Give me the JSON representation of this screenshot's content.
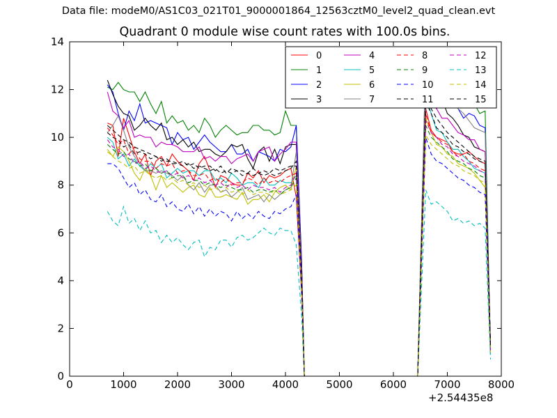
{
  "header": {
    "suptitle": "Data file: modeM0/AS1C03_021T01_9000001864_12563cztM0_level2_quad_clean.evt"
  },
  "chart_data": {
    "type": "line",
    "title": "Quadrant 0 module wise count rates with 100.0s bins.",
    "xlabel": "",
    "ylabel": "",
    "x_offset_label": "+2.54435e8",
    "xlim": [
      0,
      8000
    ],
    "ylim": [
      0,
      14
    ],
    "xticks": [
      0,
      1000,
      2000,
      3000,
      4000,
      5000,
      6000,
      7000,
      8000
    ],
    "yticks": [
      0,
      2,
      4,
      6,
      8,
      10,
      12,
      14
    ],
    "legend_position": "top-right",
    "legend_columns": 4,
    "segments": [
      {
        "x_start": 700,
        "x_end": 4100,
        "step": 100
      },
      {
        "x_start": 6600,
        "x_end": 7700,
        "step": 100
      }
    ],
    "zero_range": [
      4350,
      6450
    ],
    "series": [
      {
        "name": "0",
        "color": "#ff0000",
        "style": "solid",
        "values": [
          10.6,
          10.5,
          9.2,
          10.8,
          10.1,
          9.4,
          8.9,
          9.3,
          8.4,
          9.0,
          9.2,
          8.8,
          9.3,
          9.0,
          8.8,
          8.6,
          8.2,
          8.9,
          9.2,
          8.6,
          7.9,
          8.4,
          8.3,
          8.1,
          8.0,
          8.0,
          8.5,
          8.3,
          8.6,
          8.1,
          8.4,
          8.3,
          8.4,
          8.6,
          8.7
        ],
        "values2": [
          11.2,
          10.3,
          10.0,
          9.9,
          9.8,
          9.4,
          9.3,
          9.3,
          9.4,
          9.2,
          9.0,
          8.9
        ],
        "end_values": [
          7.5,
          1.4
        ]
      },
      {
        "name": "1",
        "color": "#008000",
        "style": "solid",
        "values": [
          12.1,
          12.0,
          12.3,
          12.0,
          11.9,
          11.9,
          11.5,
          11.9,
          11.4,
          11.0,
          11.5,
          10.6,
          10.9,
          10.6,
          10.7,
          10.3,
          10.5,
          10.2,
          10.8,
          10.5,
          10.0,
          10.3,
          10.5,
          10.3,
          10.1,
          10.2,
          10.2,
          10.5,
          10.5,
          10.3,
          10.3,
          10.1,
          10.2,
          11.1,
          10.5
        ],
        "values2": [
          13.3,
          12.9,
          12.6,
          12.5,
          12.2,
          11.9,
          12.0,
          11.3,
          11.8,
          11.4,
          11.0,
          11.1
        ],
        "end_values": [
          10.5,
          1.0
        ]
      },
      {
        "name": "2",
        "color": "#0000ff",
        "style": "solid",
        "values": [
          12.2,
          11.9,
          11.0,
          10.3,
          11.1,
          10.7,
          11.4,
          10.6,
          10.7,
          10.6,
          10.5,
          10.4,
          9.7,
          10.2,
          9.9,
          10.0,
          9.5,
          9.8,
          10.1,
          9.8,
          9.6,
          9.4,
          9.4,
          9.7,
          9.3,
          9.3,
          9.5,
          9.0,
          9.4,
          9.3,
          9.2,
          9.0,
          9.5,
          9.4,
          9.6
        ],
        "values2": [
          12.4,
          11.6,
          11.6,
          12.2,
          12.0,
          11.5,
          11.2,
          10.8,
          11.0,
          10.9,
          10.5,
          10.4
        ],
        "end_values": [
          10.5,
          1.1
        ]
      },
      {
        "name": "3",
        "color": "#000000",
        "style": "solid",
        "values": [
          12.4,
          11.8,
          11.3,
          11.0,
          10.9,
          10.3,
          10.5,
          10.8,
          10.5,
          10.3,
          10.6,
          9.9,
          10.0,
          9.7,
          9.9,
          9.6,
          9.8,
          9.4,
          9.5,
          9.5,
          9.3,
          9.2,
          9.4,
          9.7,
          9.6,
          9.7,
          9.1,
          8.7,
          9.4,
          9.6,
          9.0,
          9.5,
          8.9,
          9.6,
          9.7
        ],
        "values2": [
          12.3,
          11.4,
          11.2,
          11.6,
          11.0,
          10.8,
          10.5,
          10.1,
          10.0,
          9.6,
          9.5,
          9.4
        ],
        "end_values": [
          9.7,
          1.3
        ]
      },
      {
        "name": "4",
        "color": "#bf00bf",
        "style": "solid",
        "values": [
          11.9,
          11.1,
          10.9,
          10.4,
          10.7,
          10.0,
          10.1,
          10.0,
          10.0,
          9.6,
          9.8,
          9.7,
          9.7,
          9.6,
          9.4,
          9.4,
          9.4,
          9.6,
          9.1,
          9.2,
          9.0,
          9.2,
          9.2,
          8.9,
          9.1,
          9.2,
          9.3,
          9.0,
          9.4,
          9.5,
          9.6,
          9.0,
          9.3,
          9.5,
          9.8
        ],
        "values2": [
          12.2,
          11.4,
          11.2,
          10.8,
          10.8,
          10.5,
          10.2,
          10.1,
          9.9,
          9.9,
          9.5,
          9.4
        ],
        "end_values": [
          9.8,
          1.1
        ]
      },
      {
        "name": "5",
        "color": "#00bfbf",
        "style": "solid",
        "values": [
          10.0,
          9.8,
          9.1,
          9.3,
          8.8,
          9.1,
          8.8,
          8.6,
          8.9,
          8.7,
          8.9,
          8.3,
          8.5,
          8.7,
          8.5,
          8.6,
          8.6,
          8.4,
          8.6,
          8.6,
          8.2,
          8.3,
          8.1,
          8.5,
          8.3,
          8.0,
          8.1,
          8.1,
          7.9,
          8.3,
          8.0,
          8.0,
          8.2,
          8.1,
          8.1
        ],
        "values2": [
          11.7,
          11.0,
          10.3,
          10.2,
          9.8,
          9.5,
          9.5,
          9.2,
          9.0,
          8.7,
          8.6,
          8.5
        ],
        "end_values": [
          8.4,
          0.9
        ]
      },
      {
        "name": "6",
        "color": "#bfbf00",
        "style": "solid",
        "values": [
          9.5,
          9.2,
          9.6,
          9.4,
          9.0,
          8.5,
          8.2,
          8.7,
          8.4,
          7.8,
          8.4,
          7.9,
          8.1,
          7.9,
          7.7,
          7.9,
          8.0,
          7.6,
          7.5,
          7.9,
          7.5,
          7.5,
          7.6,
          7.5,
          7.4,
          7.7,
          7.2,
          7.4,
          7.4,
          7.6,
          7.3,
          7.7,
          7.9,
          8.0,
          7.8
        ],
        "values2": [
          10.8,
          10.2,
          9.7,
          9.6,
          9.3,
          9.2,
          8.9,
          8.8,
          8.7,
          8.5,
          8.2,
          7.9
        ],
        "end_values": [
          8.8,
          1.0
        ]
      },
      {
        "name": "7",
        "color": "#808080",
        "style": "solid",
        "values": [
          10.2,
          10.5,
          10.9,
          10.3,
          9.6,
          9.2,
          8.9,
          8.6,
          8.6,
          8.5,
          8.6,
          8.5,
          8.4,
          8.2,
          8.4,
          8.0,
          7.8,
          8.1,
          7.7,
          8.0,
          8.0,
          7.7,
          7.8,
          7.5,
          7.7,
          7.9,
          7.4,
          7.5,
          7.6,
          7.3,
          7.6,
          7.4,
          7.6,
          7.8,
          7.9
        ],
        "values2": [
          13.4,
          12.8,
          12.5,
          12.1,
          11.9,
          11.4,
          11.2,
          11.0,
          10.7,
          10.4,
          10.3,
          10.2
        ],
        "end_values": [
          9.4,
          1.0
        ]
      },
      {
        "name": "8",
        "color": "#ff0000",
        "style": "dashed",
        "values": [
          10.4,
          10.1,
          9.7,
          9.9,
          9.3,
          9.6,
          9.1,
          9.0,
          9.0,
          8.7,
          8.9,
          8.8,
          8.9,
          8.5,
          8.6,
          8.6,
          8.4,
          8.4,
          8.5,
          8.2,
          8.3,
          8.1,
          8.3,
          8.0,
          8.1,
          8.1,
          8.3,
          8.2,
          8.0,
          8.3,
          8.1,
          8.2,
          8.1,
          8.3,
          8.4
        ],
        "values2": [
          11.0,
          10.2,
          10.0,
          9.8,
          9.7,
          9.4,
          9.2,
          9.3,
          9.0,
          8.9,
          8.7,
          8.6
        ],
        "end_values": [
          8.5,
          1.2
        ]
      },
      {
        "name": "9",
        "color": "#008000",
        "style": "dashed",
        "values": [
          9.7,
          9.5,
          9.3,
          9.4,
          9.1,
          9.0,
          8.8,
          8.9,
          8.6,
          8.7,
          8.5,
          8.6,
          8.3,
          8.4,
          8.4,
          8.1,
          8.2,
          8.2,
          8.0,
          8.1,
          8.0,
          7.9,
          8.0,
          7.9,
          7.8,
          7.8,
          7.9,
          7.7,
          7.8,
          7.8,
          7.7,
          7.8,
          7.6,
          7.8,
          7.9
        ],
        "values2": [
          10.5,
          10.0,
          9.8,
          9.6,
          9.4,
          9.1,
          9.0,
          8.9,
          8.7,
          8.6,
          8.4,
          8.3
        ],
        "end_values": [
          8.3,
          1.1
        ]
      },
      {
        "name": "10",
        "color": "#0000ff",
        "style": "dashed",
        "values": [
          8.9,
          8.9,
          8.7,
          8.3,
          7.9,
          8.1,
          7.6,
          7.8,
          7.4,
          7.3,
          7.6,
          7.1,
          7.3,
          7.0,
          6.9,
          7.2,
          6.8,
          7.1,
          6.7,
          7.0,
          6.7,
          6.9,
          6.8,
          6.5,
          6.9,
          6.6,
          6.8,
          6.6,
          6.9,
          6.7,
          6.6,
          6.9,
          6.8,
          7.0,
          7.1
        ],
        "values2": [
          10.0,
          9.3,
          9.0,
          8.9,
          8.7,
          8.5,
          8.3,
          8.2,
          8.0,
          7.9,
          7.7,
          7.6
        ],
        "end_values": [
          7.6,
          1.0
        ]
      },
      {
        "name": "11",
        "color": "#000000",
        "style": "dashed",
        "values": [
          10.2,
          10.0,
          9.9,
          9.6,
          9.7,
          9.3,
          9.4,
          9.3,
          9.1,
          9.2,
          9.0,
          9.1,
          8.9,
          8.9,
          9.0,
          8.8,
          8.9,
          8.7,
          8.8,
          8.8,
          8.6,
          8.8,
          8.5,
          8.7,
          8.6,
          8.6,
          8.5,
          8.7,
          8.5,
          8.6,
          8.5,
          8.7,
          8.6,
          8.7,
          8.8
        ],
        "values2": [
          11.5,
          11.0,
          10.4,
          10.2,
          10.0,
          9.7,
          9.6,
          9.4,
          9.3,
          9.1,
          9.0,
          8.9
        ],
        "end_values": [
          8.8,
          1.2
        ]
      },
      {
        "name": "12",
        "color": "#bf00bf",
        "style": "dashed",
        "values": [
          9.9,
          9.6,
          9.5,
          9.2,
          9.3,
          8.9,
          9.0,
          8.7,
          8.8,
          8.6,
          8.5,
          8.6,
          8.4,
          8.5,
          8.3,
          8.4,
          8.2,
          8.3,
          8.1,
          8.2,
          8.0,
          8.1,
          7.9,
          8.1,
          7.9,
          8.0,
          7.8,
          8.0,
          7.9,
          7.9,
          7.8,
          7.9,
          7.7,
          7.9,
          8.0
        ],
        "values2": [
          10.7,
          10.2,
          10.0,
          9.7,
          9.6,
          9.3,
          9.2,
          9.0,
          8.9,
          8.8,
          8.6,
          8.5
        ],
        "end_values": [
          8.5,
          1.1
        ]
      },
      {
        "name": "13",
        "color": "#00bfbf",
        "style": "dashed",
        "values": [
          6.9,
          6.5,
          6.3,
          7.1,
          6.4,
          6.6,
          6.1,
          6.5,
          6.0,
          6.1,
          5.6,
          5.9,
          5.6,
          5.8,
          5.5,
          5.3,
          5.6,
          5.7,
          5.0,
          5.4,
          5.3,
          5.7,
          5.7,
          5.4,
          5.8,
          5.9,
          5.7,
          5.8,
          6.0,
          6.2,
          6.0,
          5.9,
          6.2,
          6.1,
          6.1
        ],
        "values2": [
          7.8,
          7.2,
          7.3,
          7.1,
          6.9,
          6.5,
          6.6,
          6.4,
          6.5,
          6.3,
          6.4,
          6.2
        ],
        "end_values": [
          5.5,
          0.7
        ]
      },
      {
        "name": "14",
        "color": "#bfbf00",
        "style": "dashed",
        "values": [
          9.4,
          9.2,
          9.0,
          8.9,
          8.7,
          8.8,
          8.5,
          8.6,
          8.4,
          8.3,
          8.4,
          8.2,
          8.3,
          8.1,
          8.2,
          8.0,
          8.1,
          7.9,
          8.0,
          7.8,
          7.9,
          7.7,
          7.9,
          7.7,
          7.8,
          7.6,
          7.8,
          7.6,
          7.7,
          7.7,
          7.6,
          7.8,
          7.6,
          7.7,
          7.8
        ],
        "values2": [
          10.1,
          9.7,
          9.5,
          9.3,
          9.1,
          8.9,
          8.8,
          8.6,
          8.5,
          8.4,
          8.2,
          8.1
        ],
        "end_values": [
          8.0,
          1.0
        ]
      },
      {
        "name": "15",
        "color": "#000000",
        "style": "dashed",
        "values": [
          10.5,
          10.3,
          10.1,
          9.9,
          9.8,
          9.6,
          9.5,
          9.4,
          9.3,
          9.2,
          9.1,
          9.0,
          9.0,
          8.9,
          8.8,
          8.9,
          8.7,
          8.8,
          8.7,
          8.6,
          8.7,
          8.5,
          8.6,
          8.5,
          8.6,
          8.4,
          8.5,
          8.4,
          8.5,
          8.4,
          8.5,
          8.4,
          8.5,
          8.6,
          8.7
        ],
        "values2": [
          11.8,
          11.2,
          10.8,
          10.5,
          10.2,
          10.0,
          9.8,
          9.6,
          9.4,
          9.2,
          9.1,
          9.0
        ],
        "end_values": [
          9.0,
          1.2
        ]
      }
    ]
  }
}
